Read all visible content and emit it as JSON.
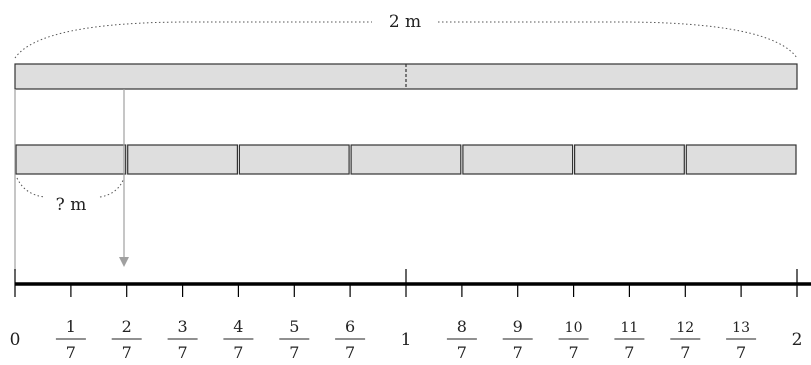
{
  "colors": {
    "bar_fill": "#dedede",
    "bar_stroke": "#333333",
    "guide": "#a0a0a0",
    "axis": "#000000",
    "text": "#222222"
  },
  "top_bar": {
    "length_label": "2 m",
    "parts": 2
  },
  "segment_bar": {
    "parts": 7,
    "question_label": "? m"
  },
  "number_line": {
    "labels": [
      {
        "type": "whole",
        "text": "0"
      },
      {
        "type": "fraction",
        "num": "1",
        "den": "7"
      },
      {
        "type": "fraction",
        "num": "2",
        "den": "7"
      },
      {
        "type": "fraction",
        "num": "3",
        "den": "7"
      },
      {
        "type": "fraction",
        "num": "4",
        "den": "7"
      },
      {
        "type": "fraction",
        "num": "5",
        "den": "7"
      },
      {
        "type": "fraction",
        "num": "6",
        "den": "7"
      },
      {
        "type": "whole",
        "text": "1"
      },
      {
        "type": "fraction",
        "num": "8",
        "den": "7"
      },
      {
        "type": "fraction",
        "num": "9",
        "den": "7"
      },
      {
        "type": "fraction",
        "num": "10",
        "den": "7"
      },
      {
        "type": "fraction",
        "num": "11",
        "den": "7"
      },
      {
        "type": "fraction",
        "num": "12",
        "den": "7"
      },
      {
        "type": "fraction",
        "num": "13",
        "den": "7"
      },
      {
        "type": "whole",
        "text": "2"
      }
    ]
  }
}
